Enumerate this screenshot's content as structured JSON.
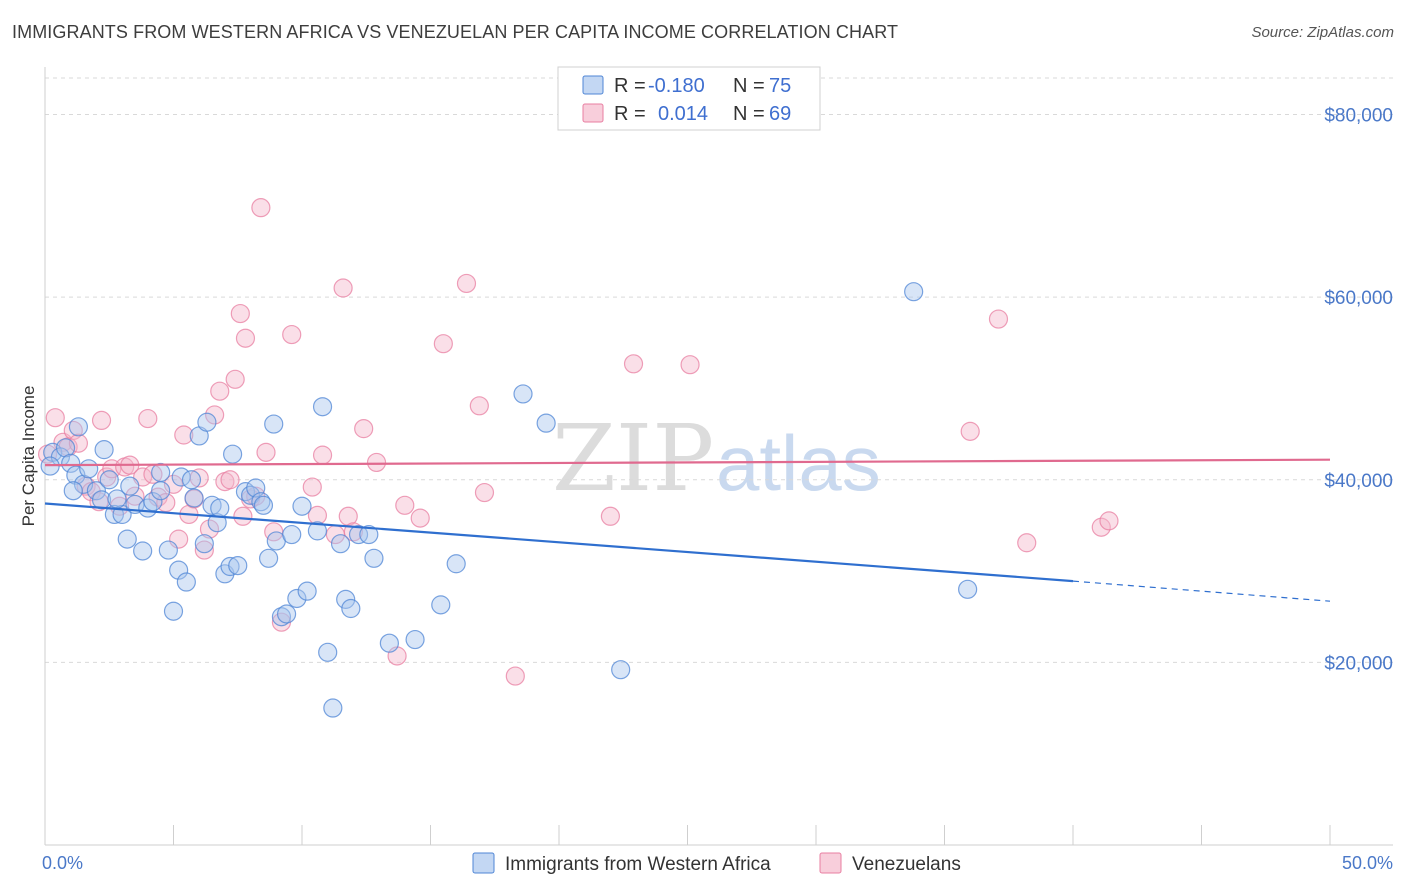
{
  "header": {
    "title": "IMMIGRANTS FROM WESTERN AFRICA VS VENEZUELAN PER CAPITA INCOME CORRELATION CHART",
    "source": "Source: ZipAtlas.com"
  },
  "watermark": "ZIPatlas",
  "colors": {
    "blue": "#4f86d6",
    "blue_fill": "#a9c6ee",
    "blue_line": "#2f6fcf",
    "pink": "#e87fa2",
    "pink_fill": "#f5b9cc",
    "pink_line": "#e06a8f",
    "axis_label": "#4a78c8",
    "grid": "#d9d9d9"
  },
  "legend_top": {
    "rows": [
      {
        "r_label": "R =",
        "r_value": "-0.180",
        "n_label": "N =",
        "n_value": "75",
        "color": "#a9c6ee"
      },
      {
        "r_label": "R =",
        "r_value": "0.014",
        "n_label": "N =",
        "n_value": "69",
        "color": "#f5b9cc"
      }
    ]
  },
  "chart_data": {
    "type": "scatter",
    "ylabel": "Per Capita Income",
    "xlim": [
      0,
      50
    ],
    "ylim": [
      0,
      84000
    ],
    "x_tick_labels": [
      "0.0%",
      "50.0%"
    ],
    "y_ticks": [
      20000,
      40000,
      60000,
      80000
    ],
    "y_tick_labels": [
      "$20,000",
      "$40,000",
      "$60,000",
      "$80,000"
    ],
    "grid": "horizontal dashed",
    "legend_position": "bottom",
    "series": [
      {
        "name": "Immigrants from Western Africa",
        "color": "#4f86d6",
        "trend": {
          "x0": 0,
          "y0": 37400,
          "x1": 40,
          "y1": 28900,
          "dash_to": 50,
          "dash_y": 26700
        },
        "points": [
          [
            0.3,
            43000
          ],
          [
            0.6,
            42500
          ],
          [
            0.8,
            43500
          ],
          [
            1.0,
            41800
          ],
          [
            1.2,
            40500
          ],
          [
            1.3,
            45800
          ],
          [
            1.5,
            39500
          ],
          [
            1.7,
            41200
          ],
          [
            2.0,
            38800
          ],
          [
            2.2,
            37800
          ],
          [
            2.5,
            40000
          ],
          [
            2.3,
            43300
          ],
          [
            2.7,
            36200
          ],
          [
            3.0,
            36200
          ],
          [
            3.2,
            33500
          ],
          [
            3.3,
            39300
          ],
          [
            3.5,
            37300
          ],
          [
            3.8,
            32200
          ],
          [
            4.0,
            36900
          ],
          [
            4.2,
            37600
          ],
          [
            4.5,
            38800
          ],
          [
            4.5,
            40800
          ],
          [
            4.8,
            32300
          ],
          [
            5.0,
            25600
          ],
          [
            5.2,
            30100
          ],
          [
            5.3,
            40300
          ],
          [
            5.5,
            28800
          ],
          [
            5.7,
            40000
          ],
          [
            5.8,
            38000
          ],
          [
            6.0,
            44800
          ],
          [
            6.2,
            33000
          ],
          [
            6.3,
            46300
          ],
          [
            6.5,
            37200
          ],
          [
            6.7,
            35300
          ],
          [
            6.8,
            36900
          ],
          [
            7.0,
            29700
          ],
          [
            7.2,
            30500
          ],
          [
            7.3,
            42800
          ],
          [
            7.5,
            30600
          ],
          [
            7.8,
            38700
          ],
          [
            8.0,
            38300
          ],
          [
            8.2,
            39100
          ],
          [
            8.4,
            37600
          ],
          [
            8.5,
            37200
          ],
          [
            8.7,
            31400
          ],
          [
            8.9,
            46100
          ],
          [
            9.0,
            33300
          ],
          [
            9.2,
            25000
          ],
          [
            9.4,
            25300
          ],
          [
            9.6,
            34000
          ],
          [
            9.8,
            27000
          ],
          [
            10.0,
            37100
          ],
          [
            10.2,
            27800
          ],
          [
            10.6,
            34400
          ],
          [
            10.8,
            48000
          ],
          [
            11.0,
            21100
          ],
          [
            11.2,
            15000
          ],
          [
            11.5,
            33000
          ],
          [
            11.7,
            26900
          ],
          [
            11.9,
            25900
          ],
          [
            12.2,
            34000
          ],
          [
            12.6,
            34000
          ],
          [
            12.8,
            31400
          ],
          [
            13.4,
            22100
          ],
          [
            14.4,
            22500
          ],
          [
            15.4,
            26300
          ],
          [
            16.0,
            30800
          ],
          [
            18.6,
            49400
          ],
          [
            19.5,
            46200
          ],
          [
            22.4,
            19200
          ],
          [
            33.8,
            60600
          ],
          [
            35.9,
            28000
          ],
          [
            0.2,
            41500
          ],
          [
            1.1,
            38800
          ],
          [
            2.8,
            37900
          ]
        ]
      },
      {
        "name": "Venezuelans",
        "color": "#e87fa2",
        "trend": {
          "x0": 0,
          "y0": 41600,
          "x1": 50,
          "y1": 42200
        },
        "points": [
          [
            0.4,
            46800
          ],
          [
            0.7,
            44100
          ],
          [
            0.9,
            43600
          ],
          [
            1.1,
            45400
          ],
          [
            1.3,
            44000
          ],
          [
            1.6,
            39300
          ],
          [
            1.8,
            38700
          ],
          [
            2.1,
            37600
          ],
          [
            2.2,
            46500
          ],
          [
            2.4,
            40300
          ],
          [
            2.6,
            41200
          ],
          [
            2.9,
            37100
          ],
          [
            3.1,
            41400
          ],
          [
            3.3,
            41600
          ],
          [
            3.5,
            38200
          ],
          [
            3.8,
            40300
          ],
          [
            4.0,
            46700
          ],
          [
            4.2,
            40600
          ],
          [
            4.4,
            38100
          ],
          [
            4.7,
            37500
          ],
          [
            5.0,
            39500
          ],
          [
            5.2,
            33500
          ],
          [
            5.4,
            44900
          ],
          [
            5.6,
            36200
          ],
          [
            5.8,
            37900
          ],
          [
            6.0,
            40200
          ],
          [
            6.2,
            32300
          ],
          [
            6.4,
            34600
          ],
          [
            6.6,
            47100
          ],
          [
            6.8,
            49700
          ],
          [
            7.0,
            39800
          ],
          [
            7.2,
            40000
          ],
          [
            7.4,
            51000
          ],
          [
            7.6,
            58200
          ],
          [
            7.7,
            36000
          ],
          [
            7.8,
            55500
          ],
          [
            8.0,
            37900
          ],
          [
            8.2,
            38200
          ],
          [
            8.4,
            69800
          ],
          [
            8.6,
            43000
          ],
          [
            8.9,
            34300
          ],
          [
            9.2,
            24400
          ],
          [
            9.6,
            55900
          ],
          [
            10.4,
            39200
          ],
          [
            10.6,
            36100
          ],
          [
            10.8,
            42700
          ],
          [
            11.3,
            34000
          ],
          [
            11.6,
            61000
          ],
          [
            11.8,
            36000
          ],
          [
            12.0,
            34300
          ],
          [
            12.4,
            45600
          ],
          [
            12.9,
            41900
          ],
          [
            13.7,
            20700
          ],
          [
            14.0,
            37200
          ],
          [
            14.6,
            35800
          ],
          [
            15.5,
            54900
          ],
          [
            16.4,
            61500
          ],
          [
            16.9,
            48100
          ],
          [
            17.1,
            38600
          ],
          [
            18.3,
            18500
          ],
          [
            22.0,
            36000
          ],
          [
            22.9,
            52700
          ],
          [
            25.1,
            52600
          ],
          [
            36.0,
            45300
          ],
          [
            37.1,
            57600
          ],
          [
            38.2,
            33100
          ],
          [
            41.1,
            34800
          ],
          [
            41.4,
            35500
          ],
          [
            0.1,
            42800
          ]
        ]
      }
    ]
  }
}
